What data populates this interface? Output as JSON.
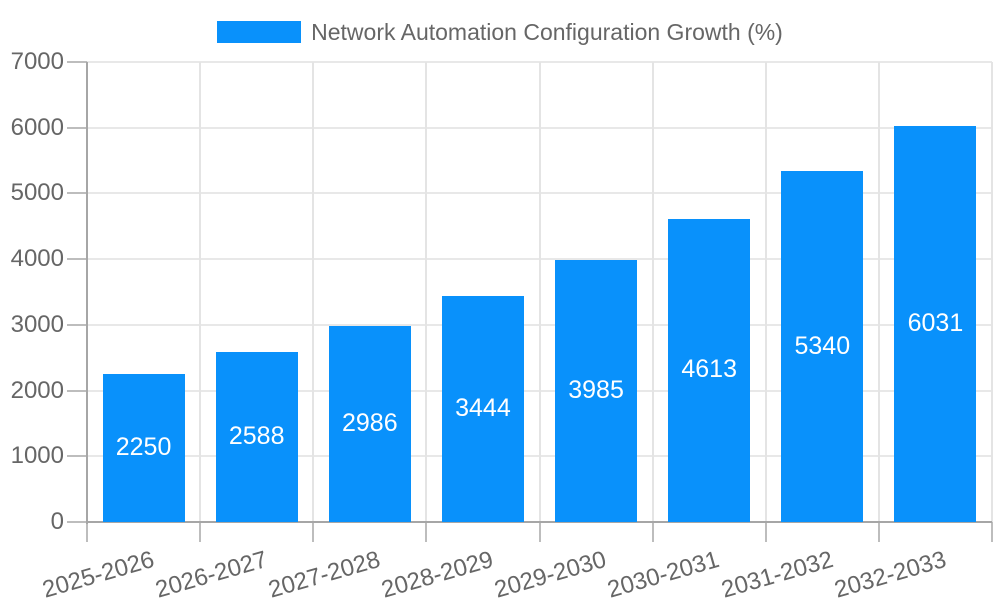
{
  "legend": {
    "label": "Network Automation Configuration Growth (%)"
  },
  "chart_data": {
    "type": "bar",
    "title": "Network Automation Configuration Growth (%)",
    "categories": [
      "2025-2026",
      "2026-2027",
      "2027-2028",
      "2028-2029",
      "2029-2030",
      "2030-2031",
      "2031-2032",
      "2032-2033"
    ],
    "values": [
      2250,
      2588,
      2986,
      3444,
      3985,
      4613,
      5340,
      6031
    ],
    "xlabel": "",
    "ylabel": "",
    "ylim": [
      0,
      7000
    ],
    "ytick_step": 1000,
    "ytick_labels": [
      "0",
      "1000",
      "2000",
      "3000",
      "4000",
      "5000",
      "6000",
      "7000"
    ],
    "grid": "on",
    "legend_position": "top",
    "bar_color": "#0991fb",
    "value_label_color": "#ffffff",
    "axis_text_color": "#666666"
  }
}
